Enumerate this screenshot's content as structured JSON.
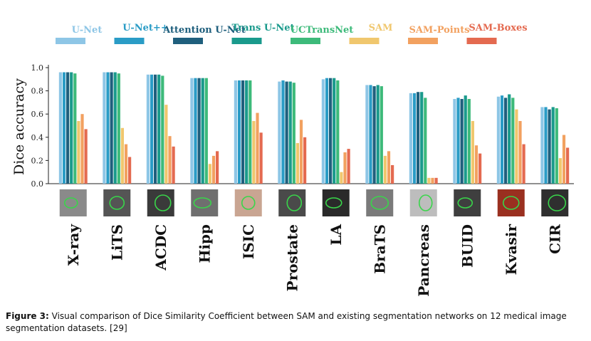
{
  "chart_data": {
    "type": "bar",
    "title": "",
    "xlabel": "",
    "ylabel": "Dice accuracy",
    "ylim": [
      0,
      1.0
    ],
    "yticks": [
      "0.0",
      "0.2",
      "0.4",
      "0.6",
      "0.8",
      "1.0"
    ],
    "legend_placement": "top",
    "categories": [
      "X-ray",
      "LiTS",
      "ACDC",
      "Hipp",
      "ISIC",
      "Prostate",
      "LA",
      "BraTS",
      "Pancreas",
      "BUID",
      "Kvasir",
      "CIR"
    ],
    "series": [
      {
        "name": "U-Net",
        "color": "#8ec6e6",
        "values": [
          0.96,
          0.96,
          0.94,
          0.91,
          0.89,
          0.88,
          0.9,
          0.85,
          0.78,
          0.73,
          0.75,
          0.66
        ]
      },
      {
        "name": "U-Net++",
        "color": "#2a9cc6",
        "values": [
          0.96,
          0.96,
          0.94,
          0.91,
          0.89,
          0.89,
          0.91,
          0.85,
          0.78,
          0.74,
          0.76,
          0.66
        ]
      },
      {
        "name": "Attention U-Net",
        "color": "#1f5f7d",
        "values": [
          0.96,
          0.96,
          0.94,
          0.91,
          0.89,
          0.88,
          0.91,
          0.84,
          0.79,
          0.73,
          0.74,
          0.64
        ]
      },
      {
        "name": "Trans U-Net",
        "color": "#1a9a8c",
        "values": [
          0.96,
          0.96,
          0.94,
          0.91,
          0.89,
          0.88,
          0.91,
          0.85,
          0.79,
          0.76,
          0.77,
          0.66
        ]
      },
      {
        "name": "UCTransNet",
        "color": "#3dba7a",
        "values": [
          0.95,
          0.95,
          0.93,
          0.91,
          0.89,
          0.87,
          0.89,
          0.84,
          0.74,
          0.73,
          0.74,
          0.65
        ]
      },
      {
        "name": "SAM",
        "color": "#f0c76e",
        "values": [
          0.54,
          0.48,
          0.68,
          0.17,
          0.54,
          0.35,
          0.1,
          0.24,
          0.05,
          0.54,
          0.64,
          0.22
        ]
      },
      {
        "name": "SAM-Points",
        "color": "#f2a160",
        "values": [
          0.6,
          0.34,
          0.41,
          0.24,
          0.61,
          0.55,
          0.27,
          0.28,
          0.05,
          0.33,
          0.54,
          0.42
        ]
      },
      {
        "name": "SAM-Boxes",
        "color": "#e46a50",
        "values": [
          0.47,
          0.23,
          0.32,
          0.28,
          0.44,
          0.4,
          0.3,
          0.16,
          0.05,
          0.26,
          0.34,
          0.31
        ]
      }
    ]
  },
  "caption": {
    "label": "Figure 3:",
    "text": " Visual comparison of Dice Similarity Coefficient between SAM and existing segmentation networks on 12 medical image segmentation datasets. [29]"
  }
}
